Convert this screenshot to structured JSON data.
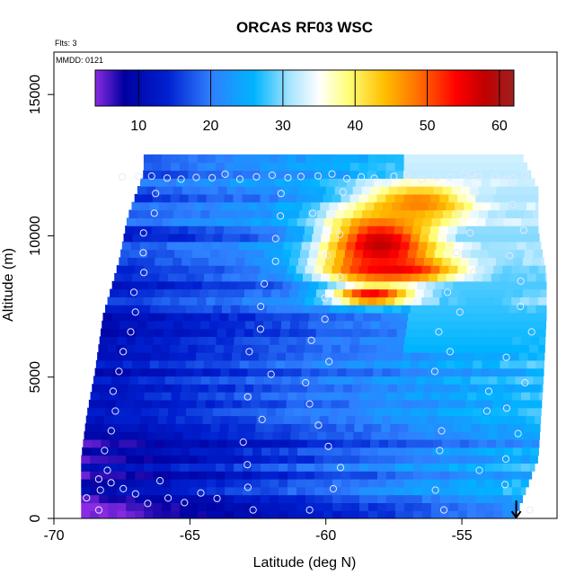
{
  "chart_data": {
    "type": "heatmap",
    "title": "ORCAS RF03 WSC",
    "flights_note": "Flts: 3",
    "date_note": "MMDD: 0121",
    "xlabel": "Latitude (deg N)",
    "ylabel": "Altitude (m)",
    "xlim": [
      -70,
      -51.5
    ],
    "ylim": [
      0,
      16500
    ],
    "x_ticks": [
      -70,
      -65,
      -60,
      -55
    ],
    "x_tick_labels": [
      "-70",
      "-65",
      "-60",
      "-55"
    ],
    "y_ticks": [
      0,
      5000,
      10000,
      15000
    ],
    "y_tick_labels": [
      "0",
      "5000",
      "10000",
      "15000"
    ],
    "colorbar": {
      "min": 4,
      "max": 62,
      "ticks": [
        10,
        20,
        30,
        40,
        50,
        60
      ],
      "tick_labels": [
        "10",
        "20",
        "30",
        "40",
        "50",
        "60"
      ],
      "stops": [
        {
          "v": 4,
          "c": "#8a2be2"
        },
        {
          "v": 8,
          "c": "#0000a0"
        },
        {
          "v": 14,
          "c": "#0020d0"
        },
        {
          "v": 20,
          "c": "#2f7fff"
        },
        {
          "v": 26,
          "c": "#00b4ff"
        },
        {
          "v": 31,
          "c": "#a8e4ff"
        },
        {
          "v": 35,
          "c": "#ffffff"
        },
        {
          "v": 39,
          "c": "#ffff7a"
        },
        {
          "v": 44,
          "c": "#ffc000"
        },
        {
          "v": 49,
          "c": "#ff6a00"
        },
        {
          "v": 54,
          "c": "#ff0000"
        },
        {
          "v": 58,
          "c": "#c00000"
        },
        {
          "v": 62,
          "c": "#9e2020"
        }
      ]
    },
    "coverage": {
      "x_start": -69,
      "x_end": [
        [
          0,
          -53
        ],
        [
          2000,
          -52.2
        ],
        [
          5000,
          -52
        ],
        [
          7000,
          -51.9
        ],
        [
          8500,
          -51.9
        ],
        [
          10000,
          -52.2
        ],
        [
          11500,
          -52.2
        ],
        [
          12100,
          -52.5
        ],
        [
          12700,
          -52.8
        ]
      ],
      "x_left": [
        [
          0,
          -69
        ],
        [
          2000,
          -69
        ],
        [
          3500,
          -68.8
        ],
        [
          5000,
          -68.5
        ],
        [
          7000,
          -68.2
        ],
        [
          9000,
          -67.6
        ],
        [
          10500,
          -67.3
        ],
        [
          12100,
          -66.7
        ]
      ]
    },
    "jet": [
      {
        "lat": -58,
        "alt": 9700,
        "peak": 58,
        "sx": 2.2,
        "sy": 1300
      },
      {
        "lat": -58.3,
        "alt": 7900,
        "peak": 56,
        "sx": 1.5,
        "sy": 300
      },
      {
        "lat": -57.5,
        "alt": 8800,
        "peak": 55,
        "sx": 2.5,
        "sy": 400
      },
      {
        "lat": -56.6,
        "alt": 11200,
        "peak": 48,
        "sx": 2.0,
        "sy": 700
      }
    ],
    "arrow": {
      "lat": -53,
      "alt": 0
    }
  }
}
